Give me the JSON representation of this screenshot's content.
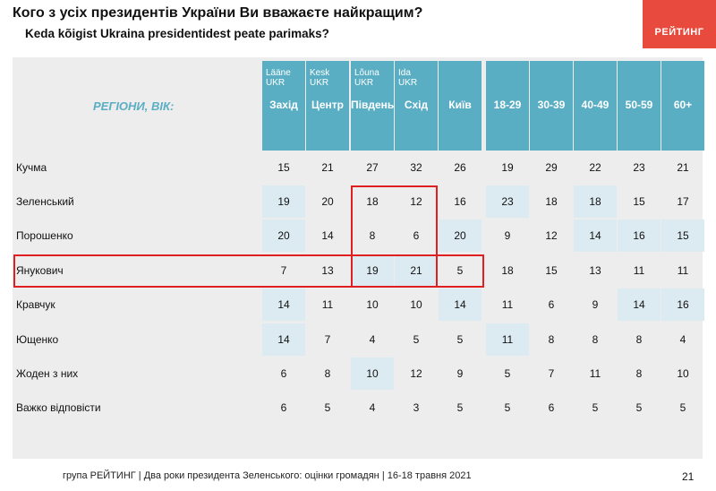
{
  "title": "Кого з усіх президентів України Ви вважаєте найкращим?",
  "subtitle": "Keda kõigist Ukraina presidentidest peate parimaks?",
  "logo": "РЕЙТИНГ",
  "region_label": "РЕГІОНИ, ВІК:",
  "columns": [
    {
      "small": [
        "Lääne",
        "UKR"
      ],
      "main": "Захід"
    },
    {
      "small": [
        "Kesk",
        "UKR"
      ],
      "main": "Центр"
    },
    {
      "small": [
        "Lõuna",
        "UKR"
      ],
      "main": "Південь"
    },
    {
      "small": [
        "Ida",
        "UKR"
      ],
      "main": "Схід"
    },
    {
      "small": [],
      "main": "Київ"
    },
    {
      "small": [],
      "main": "18-29"
    },
    {
      "small": [],
      "main": "30-39"
    },
    {
      "small": [],
      "main": "40-49"
    },
    {
      "small": [],
      "main": "50-59"
    },
    {
      "small": [],
      "main": "60+"
    }
  ],
  "rows": [
    {
      "label": "Кучма",
      "values": [
        "15",
        "21",
        "27",
        "32",
        "26",
        "19",
        "29",
        "22",
        "23",
        "21"
      ]
    },
    {
      "label": "Зеленський",
      "values": [
        "19",
        "20",
        "18",
        "12",
        "16",
        "23",
        "18",
        "18",
        "15",
        "17"
      ]
    },
    {
      "label": "Порошенко",
      "values": [
        "20",
        "14",
        "8",
        "6",
        "20",
        "9",
        "12",
        "14",
        "16",
        "15"
      ]
    },
    {
      "label": "Янукович",
      "values": [
        "7",
        "13",
        "19",
        "21",
        "5",
        "18",
        "15",
        "13",
        "11",
        "11"
      ]
    },
    {
      "label": "Кравчук",
      "values": [
        "14",
        "11",
        "10",
        "10",
        "14",
        "11",
        "6",
        "9",
        "14",
        "16"
      ]
    },
    {
      "label": "Ющенко",
      "values": [
        "14",
        "7",
        "4",
        "5",
        "5",
        "11",
        "8",
        "8",
        "8",
        "4"
      ]
    },
    {
      "label": "Жоден з них",
      "values": [
        "6",
        "8",
        "10",
        "12",
        "9",
        "5",
        "7",
        "11",
        "8",
        "10"
      ]
    },
    {
      "label": "Важко відповісти",
      "values": [
        "6",
        "5",
        "4",
        "3",
        "5",
        "5",
        "6",
        "5",
        "5",
        "5"
      ]
    }
  ],
  "highlight_color": "#dcebf2",
  "header_color": "#5aaec4",
  "marker_color": "#e02020",
  "footer": "група РЕЙТИНГ | Два роки президента Зеленського: оцінки громадян  | 16-18 травня 2021",
  "page_number": "21"
}
